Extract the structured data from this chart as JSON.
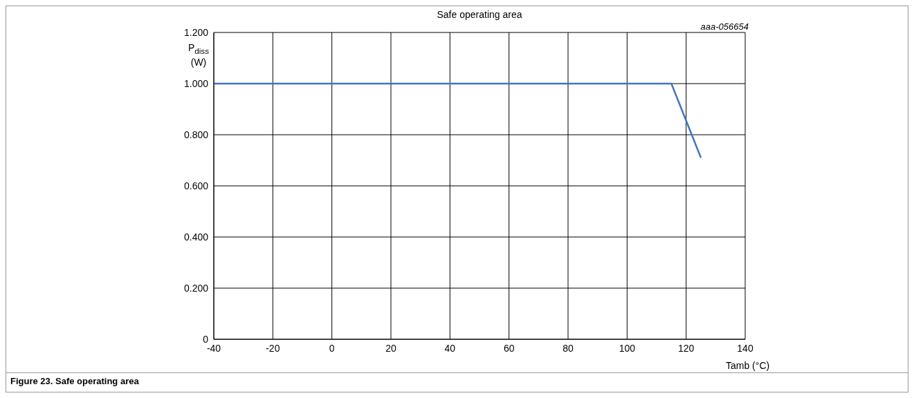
{
  "chart_data": {
    "type": "line",
    "title": "Safe operating area",
    "xlabel": "Tamb (°C)",
    "ylabel": "P$_{diss}$ (W)",
    "annotations": [
      "aaa-056654",
      "Figure 23.  Safe operating area"
    ],
    "x": [
      -40,
      115,
      125
    ],
    "series": [
      {
        "color": "#4472c4",
        "values": [
          1.0,
          1.0,
          0.71
        ]
      }
    ],
    "xlim": [
      -40,
      140
    ],
    "xticks": [
      -40,
      -20,
      0,
      20,
      40,
      60,
      80,
      100,
      120,
      140
    ],
    "ylim": [
      0,
      1.2
    ],
    "yticks": [
      0,
      {
        "value": 0.2,
        "label": "0.200"
      },
      {
        "value": 0.4,
        "label": "0.400"
      },
      {
        "value": 0.6,
        "label": "0.600"
      },
      {
        "value": 0.8,
        "label": "0.800"
      },
      {
        "value": 1,
        "label": "1.000"
      },
      {
        "value": 1.2,
        "label": "1.200"
      }
    ],
    "grid": true
  }
}
